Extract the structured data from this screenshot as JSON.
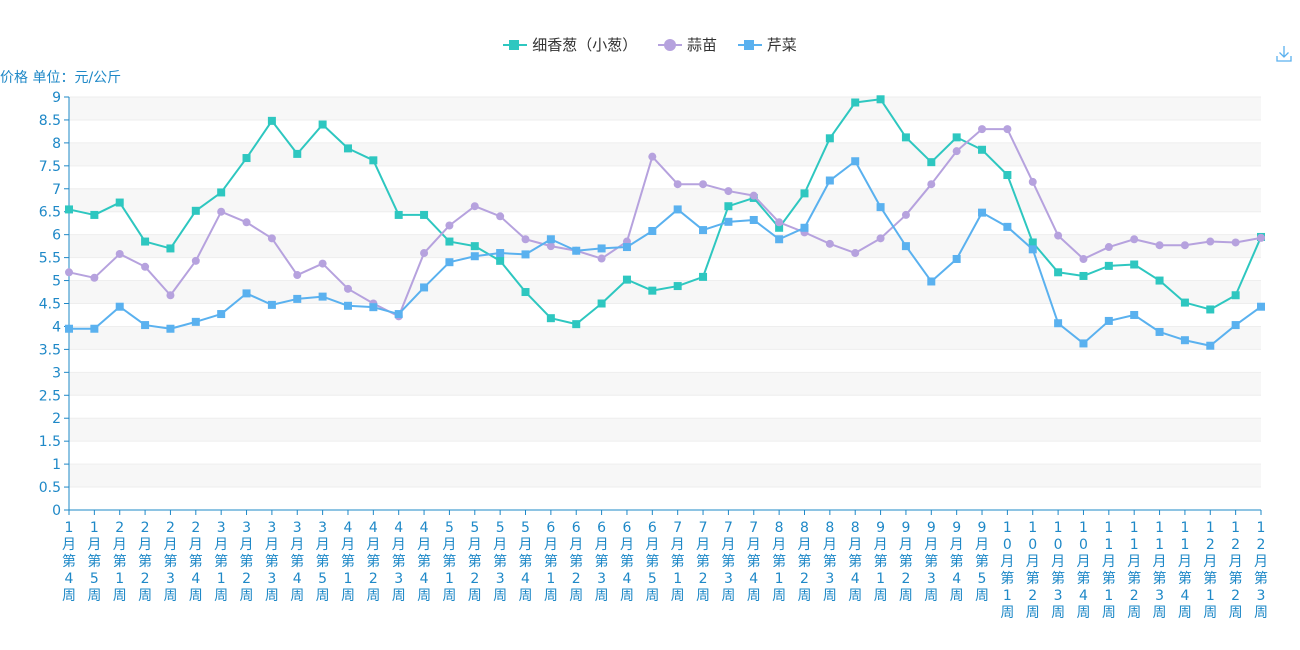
{
  "unit_label": "价格 单位：元/公斤",
  "legend_items": [
    "细香葱（小葱）",
    "蒜苗",
    "芹菜"
  ],
  "colors": {
    "axis": "#1e88c7",
    "grid": "#eeeeee",
    "band": "#f7f7f7"
  },
  "chart_data": {
    "type": "line",
    "ylabel": "价格 单位：元/公斤",
    "ylim": [
      0,
      9
    ],
    "y_ticks": [
      "0",
      "0.5",
      "1",
      "1.5",
      "2",
      "2.5",
      "3",
      "3.5",
      "4",
      "4.5",
      "5",
      "5.5",
      "6",
      "6.5",
      "7",
      "7.5",
      "8",
      "8.5",
      "9"
    ],
    "grid": true,
    "legend_position": "top-center",
    "categories": [
      "1月第4周",
      "1月第5周",
      "2月第1周",
      "2月第2周",
      "2月第3周",
      "2月第4周",
      "3月第1周",
      "3月第2周",
      "3月第3周",
      "3月第4周",
      "3月第5周",
      "4月第1周",
      "4月第2周",
      "4月第3周",
      "4月第4周",
      "5月第1周",
      "5月第2周",
      "5月第3周",
      "5月第4周",
      "6月第1周",
      "6月第2周",
      "6月第3周",
      "6月第4周",
      "6月第5周",
      "7月第1周",
      "7月第2周",
      "7月第3周",
      "7月第4周",
      "8月第1周",
      "8月第2周",
      "8月第3周",
      "8月第4周",
      "9月第1周",
      "9月第2周",
      "9月第3周",
      "9月第4周",
      "9月第5周",
      "10月第1周",
      "10月第2周",
      "10月第3周",
      "10月第4周",
      "11月第1周",
      "11月第2周",
      "11月第3周",
      "11月第4周",
      "12月第1周",
      "12月第2周",
      "12月第3周"
    ],
    "series": [
      {
        "name": "细香葱（小葱）",
        "color": "#2ec7c0",
        "marker": "square",
        "values": [
          6.55,
          6.43,
          6.7,
          5.85,
          5.7,
          6.52,
          6.92,
          7.67,
          8.48,
          7.76,
          8.4,
          7.88,
          7.62,
          6.43,
          6.43,
          5.85,
          5.75,
          5.43,
          4.75,
          4.18,
          4.05,
          4.5,
          5.02,
          4.78,
          4.88,
          5.08,
          6.62,
          6.8,
          6.15,
          6.9,
          8.1,
          8.88,
          8.95,
          8.12,
          7.58,
          8.12,
          7.85,
          7.3,
          5.83,
          5.18,
          5.1,
          5.32,
          5.35,
          5.0,
          4.52,
          4.37,
          4.68,
          5.95
        ]
      },
      {
        "name": "蒜苗",
        "color": "#b6a2de",
        "marker": "circle",
        "values": [
          5.18,
          5.06,
          5.58,
          5.3,
          4.68,
          5.43,
          6.5,
          6.27,
          5.92,
          5.12,
          5.37,
          4.82,
          4.5,
          4.22,
          5.6,
          6.2,
          6.62,
          6.4,
          5.9,
          5.75,
          5.65,
          5.48,
          5.85,
          7.7,
          7.1,
          7.1,
          6.95,
          6.85,
          6.27,
          6.05,
          5.8,
          5.6,
          5.92,
          6.43,
          7.1,
          7.82,
          8.3,
          8.3,
          7.15,
          5.98,
          5.47,
          5.73,
          5.9,
          5.77,
          5.77,
          5.85,
          5.83,
          5.93
        ]
      },
      {
        "name": "芹菜",
        "color": "#5ab1ef",
        "marker": "square",
        "values": [
          3.95,
          3.95,
          4.43,
          4.03,
          3.95,
          4.1,
          4.27,
          4.72,
          4.47,
          4.6,
          4.65,
          4.45,
          4.42,
          4.27,
          4.85,
          5.4,
          5.53,
          5.6,
          5.57,
          5.9,
          5.65,
          5.7,
          5.73,
          6.08,
          6.55,
          6.1,
          6.28,
          6.32,
          5.9,
          6.15,
          7.18,
          7.6,
          6.6,
          5.75,
          4.98,
          5.47,
          6.48,
          6.17,
          5.68,
          4.07,
          3.63,
          4.12,
          4.25,
          3.88,
          3.7,
          3.58,
          4.03,
          4.43
        ]
      }
    ]
  }
}
